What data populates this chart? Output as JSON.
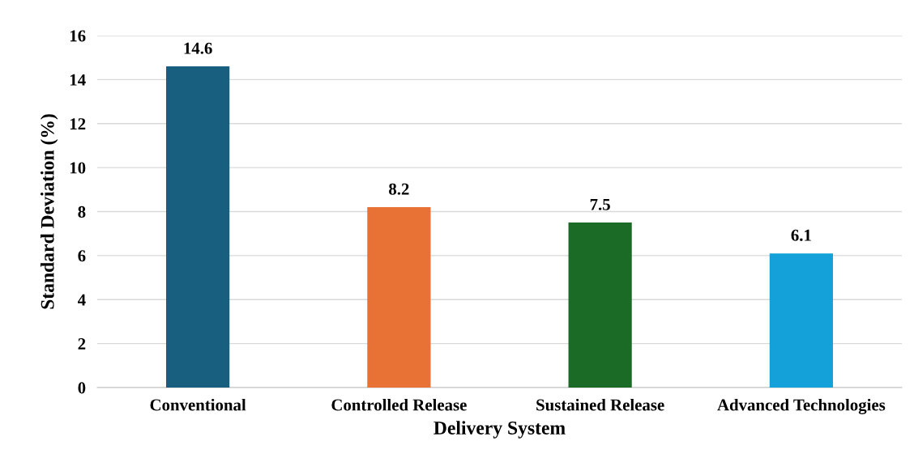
{
  "chart_data": {
    "type": "bar",
    "xlabel": "Delivery System",
    "ylabel": "Standard Deviation (%)",
    "categories": [
      "Conventional",
      "Controlled Release",
      "Sustained Release",
      "Advanced Technologies"
    ],
    "values": [
      14.6,
      8.2,
      7.5,
      6.1
    ],
    "colors": [
      "#175e7f",
      "#e87135",
      "#1b6b27",
      "#14a0d8"
    ],
    "ylim": [
      0,
      16
    ],
    "yticks": [
      0,
      2,
      4,
      6,
      8,
      10,
      12,
      14,
      16
    ],
    "grid": "y",
    "data_labels": true
  }
}
